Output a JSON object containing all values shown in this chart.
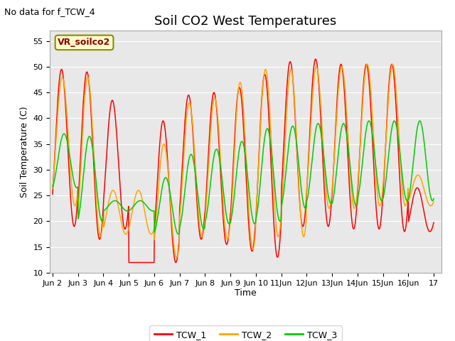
{
  "title": "Soil CO2 West Temperatures",
  "xlabel": "Time",
  "ylabel": "Soil Temperature (C)",
  "no_data_text": "No data for f_TCW_4",
  "annotation_text": "VR_soilco2",
  "ylim": [
    10,
    57
  ],
  "yticks": [
    10,
    15,
    20,
    25,
    30,
    35,
    40,
    45,
    50,
    55
  ],
  "x_tick_labels": [
    "Jun 2",
    "Jun 3",
    "Jun 4",
    "Jun 5",
    "Jun 6",
    "Jun 7",
    "Jun 8",
    "Jun 9",
    "Jun 10",
    "11Jun",
    "12Jun",
    "13Jun",
    "14Jun",
    "15Jun",
    "16Jun",
    "17"
  ],
  "TCW1_peaks": [
    49.5,
    49.0,
    43.5,
    12.0,
    39.5,
    44.5,
    45.0,
    46.0,
    48.5,
    51.0,
    51.5,
    50.5,
    50.5,
    50.5,
    26.5
  ],
  "TCW1_troughs": [
    19.0,
    16.5,
    18.5,
    12.0,
    12.0,
    16.5,
    15.5,
    14.2,
    13.0,
    19.0,
    19.0,
    18.5,
    18.5,
    18.0,
    18.0
  ],
  "TCW2_peaks": [
    48.0,
    48.0,
    26.0,
    26.0,
    35.0,
    43.0,
    44.0,
    47.0,
    49.5,
    49.5,
    50.0,
    50.0,
    50.5,
    50.5,
    29.0
  ],
  "TCW2_troughs": [
    23.0,
    17.0,
    17.5,
    17.5,
    13.0,
    17.0,
    16.5,
    14.5,
    17.0,
    17.0,
    22.5,
    22.5,
    23.0,
    23.0,
    23.0
  ],
  "TCW3_peaks": [
    37.0,
    36.5,
    24.0,
    24.0,
    28.5,
    33.0,
    34.0,
    35.5,
    38.0,
    38.5,
    39.0,
    39.0,
    39.5,
    39.5,
    39.5
  ],
  "TCW3_troughs": [
    26.5,
    20.0,
    22.0,
    22.0,
    17.5,
    18.5,
    19.5,
    19.5,
    20.0,
    22.5,
    23.5,
    23.0,
    24.0,
    24.0,
    24.0
  ],
  "color_tcw1": "#FF0000",
  "color_tcw2": "#FFA500",
  "color_tcw3": "#00CC00",
  "background_color": "#E8E8E8",
  "fig_background": "#FFFFFF",
  "legend_entries": [
    "TCW_1",
    "TCW_2",
    "TCW_3"
  ],
  "legend_colors": [
    "#FF0000",
    "#FFA500",
    "#00CC00"
  ],
  "title_fontsize": 13,
  "axis_label_fontsize": 9,
  "tick_fontsize": 8,
  "annotation_fontsize": 9,
  "no_data_fontsize": 9
}
